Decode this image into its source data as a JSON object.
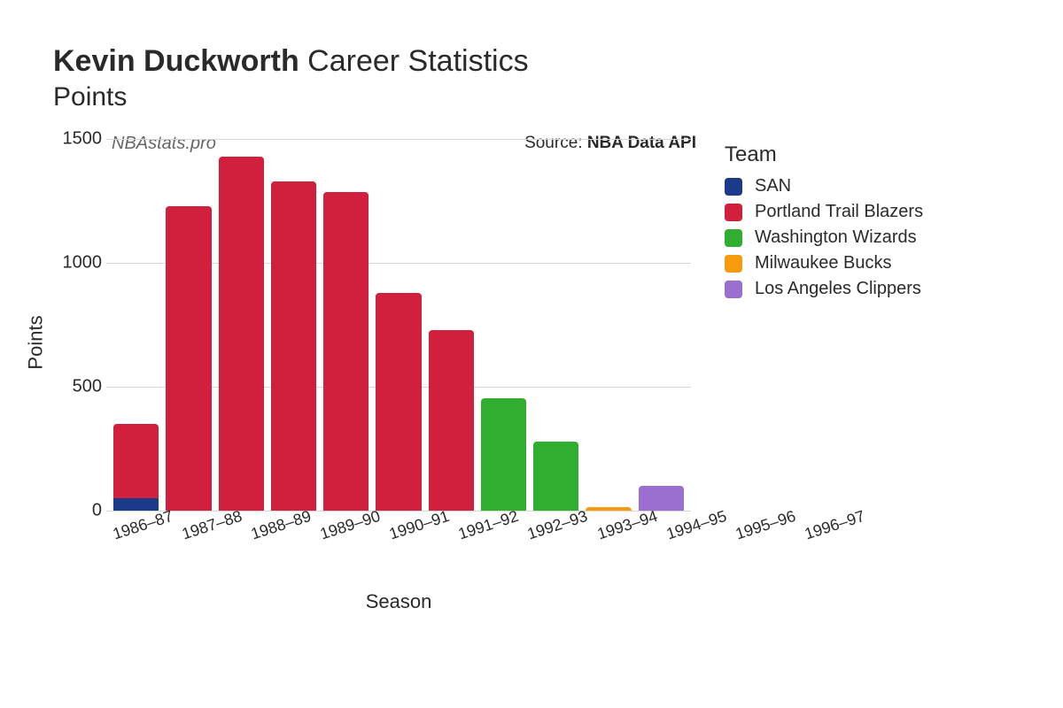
{
  "title": {
    "bold": "Kevin Duckworth",
    "rest": " Career Statistics"
  },
  "subtitle": "Points",
  "watermark": "NBAstats.pro",
  "source_label": "Source: ",
  "source_value": "NBA Data API",
  "ylabel": "Points",
  "xlabel": "Season",
  "legend_title": "Team",
  "chart": {
    "type": "stacked-bar",
    "ylim": [
      0,
      1500
    ],
    "ytick_step": 500,
    "yticks": [
      0,
      500,
      1000,
      1500
    ],
    "background_color": "#ffffff",
    "grid_color": "#d8d8d8",
    "bar_width_ratio": 0.82,
    "bar_border_radius": 4
  },
  "teams": [
    {
      "key": "SAN",
      "label": "SAN",
      "color": "#1b3a8a"
    },
    {
      "key": "POR",
      "label": "Portland Trail Blazers",
      "color": "#d1203d"
    },
    {
      "key": "WAS",
      "label": "Washington Wizards",
      "color": "#2fae2f"
    },
    {
      "key": "MIL",
      "label": "Milwaukee Bucks",
      "color": "#f59b0e"
    },
    {
      "key": "LAC",
      "label": "Los Angeles Clippers",
      "color": "#9a6fd0"
    }
  ],
  "seasons": [
    {
      "label": "1986–87",
      "segments": [
        {
          "team": "SAN",
          "value": 50
        },
        {
          "team": "POR",
          "value": 300
        }
      ]
    },
    {
      "label": "1987–88",
      "segments": [
        {
          "team": "POR",
          "value": 1230
        }
      ]
    },
    {
      "label": "1988–89",
      "segments": [
        {
          "team": "POR",
          "value": 1430
        }
      ]
    },
    {
      "label": "1989–90",
      "segments": [
        {
          "team": "POR",
          "value": 1330
        }
      ]
    },
    {
      "label": "1990–91",
      "segments": [
        {
          "team": "POR",
          "value": 1285
        }
      ]
    },
    {
      "label": "1991–92",
      "segments": [
        {
          "team": "POR",
          "value": 880
        }
      ]
    },
    {
      "label": "1992–93",
      "segments": [
        {
          "team": "POR",
          "value": 730
        }
      ]
    },
    {
      "label": "1993–94",
      "segments": [
        {
          "team": "WAS",
          "value": 455
        }
      ]
    },
    {
      "label": "1994–95",
      "segments": [
        {
          "team": "WAS",
          "value": 280
        }
      ]
    },
    {
      "label": "1995–96",
      "segments": [
        {
          "team": "MIL",
          "value": 15
        }
      ]
    },
    {
      "label": "1996–97",
      "segments": [
        {
          "team": "LAC",
          "value": 100
        }
      ]
    }
  ]
}
